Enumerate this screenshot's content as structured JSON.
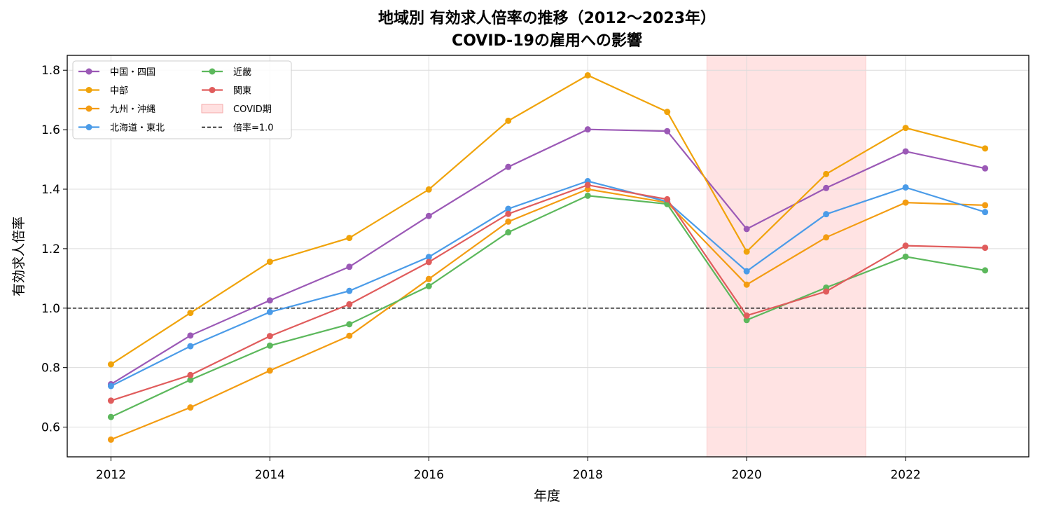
{
  "chart_data": {
    "type": "line",
    "title_line1": "地域別 有効求人倍率の推移（2012〜2023年）",
    "title_line2": "COVID-19の雇用への影響",
    "xlabel": "年度",
    "ylabel": "有効求人倍率",
    "x": [
      2012,
      2013,
      2014,
      2015,
      2016,
      2017,
      2018,
      2019,
      2020,
      2021,
      2022,
      2023
    ],
    "xlim": [
      2011.45,
      2023.55
    ],
    "ylim": [
      0.5,
      1.85
    ],
    "xticks": [
      2012,
      2014,
      2016,
      2018,
      2020,
      2022
    ],
    "yticks": [
      "0.6",
      "0.8",
      "1.0",
      "1.2",
      "1.4",
      "1.6",
      "1.8"
    ],
    "grid": true,
    "legend_position": "top-left",
    "series": [
      {
        "name": "中国・四国",
        "color": "#9b59b6",
        "values": [
          0.744,
          0.908,
          1.026,
          1.139,
          1.31,
          1.475,
          1.601,
          1.595,
          1.266,
          1.404,
          1.527,
          1.47
        ]
      },
      {
        "name": "中部",
        "color": "#f0a30a",
        "values": [
          0.811,
          0.984,
          1.156,
          1.236,
          1.399,
          1.63,
          1.783,
          1.66,
          1.19,
          1.451,
          1.606,
          1.537
        ]
      },
      {
        "name": "九州・沖縄",
        "color": "#f39c12",
        "values": [
          0.558,
          0.666,
          0.79,
          0.907,
          1.098,
          1.291,
          1.4,
          1.355,
          1.079,
          1.238,
          1.355,
          1.346
        ]
      },
      {
        "name": "北海道・東北",
        "color": "#4a9be8",
        "values": [
          0.738,
          0.872,
          0.987,
          1.058,
          1.172,
          1.334,
          1.427,
          1.358,
          1.124,
          1.316,
          1.406,
          1.323
        ]
      },
      {
        "name": "近畿",
        "color": "#5cb85c",
        "values": [
          0.634,
          0.759,
          0.874,
          0.946,
          1.074,
          1.255,
          1.378,
          1.35,
          0.96,
          1.069,
          1.173,
          1.127
        ]
      },
      {
        "name": "関東",
        "color": "#e05c5c",
        "values": [
          0.689,
          0.775,
          0.906,
          1.013,
          1.155,
          1.317,
          1.414,
          1.366,
          0.975,
          1.056,
          1.21,
          1.203
        ]
      }
    ],
    "covid_span": {
      "label": "COVID期",
      "start": 2019.5,
      "end": 2021.5,
      "color": "#ffcccc"
    },
    "reference_line": {
      "label": "倍率=1.0",
      "value": 1.0,
      "color": "#000000"
    }
  }
}
